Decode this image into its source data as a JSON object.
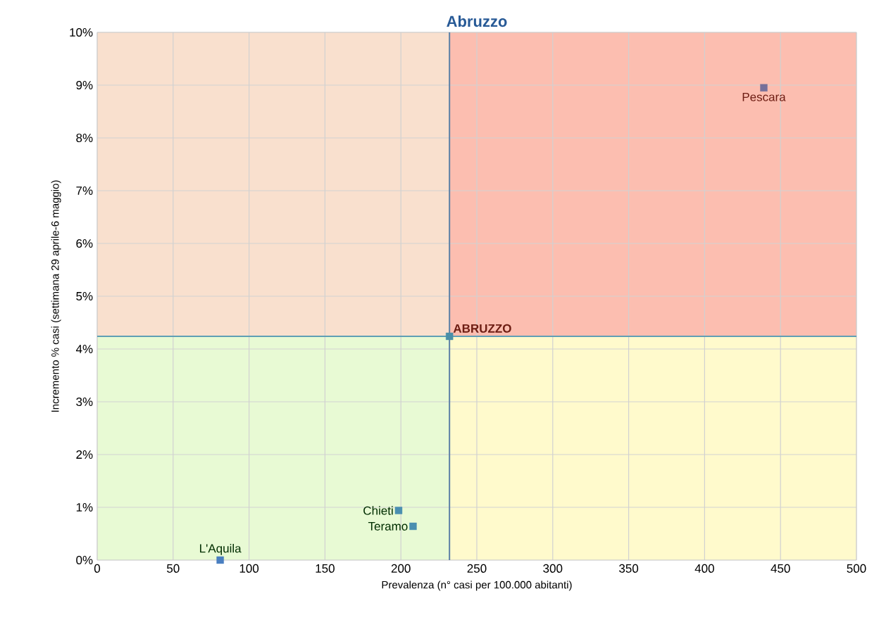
{
  "chart_data": {
    "type": "scatter",
    "title": "Abruzzo",
    "xlabel": "Prevalenza  (n° casi per 100.000 abitanti)",
    "ylabel": "Incremento % casi (settimana 29 aprile-6 maggio)",
    "series": [
      {
        "name": "L'Aquila",
        "color": "#4a7fc1",
        "x": [
          81
        ],
        "values": [
          0
        ]
      },
      {
        "name": "Chieti",
        "color": "#4a8fb0",
        "x": [
          198.5
        ],
        "values": [
          0.94
        ]
      },
      {
        "name": "Teramo",
        "color": "#4a8fb0",
        "x": [
          208
        ],
        "values": [
          0.64
        ]
      },
      {
        "name": "ABRUZZO",
        "color": "#4a8fa8",
        "x": [
          232
        ],
        "values": [
          4.24
        ]
      },
      {
        "name": "Pescara",
        "color": "#76709a",
        "x": [
          439
        ],
        "values": [
          8.95
        ]
      }
    ],
    "ref_lines": [
      {
        "axis": "x",
        "value": 232,
        "color": "#5b7fa6"
      },
      {
        "axis": "y",
        "value": 4.24,
        "color": "#5f9fb5"
      }
    ],
    "bands": [
      {
        "axis": "y",
        "from": 4.24,
        "to": 10,
        "color": "#f9e0ce"
      },
      {
        "axis": "y",
        "from": 4.24,
        "to": 10,
        "color": "#fcbeb0"
      },
      {
        "axis": "y",
        "from": 0,
        "to": 4.24,
        "color": "#e8fad4"
      },
      {
        "axis": "y",
        "from": 0,
        "to": 4.24,
        "color": "#fffacc"
      }
    ],
    "xlim": [
      0,
      500
    ],
    "xticks": [
      0,
      50,
      100,
      150,
      200,
      250,
      300,
      350,
      400,
      450,
      500
    ],
    "ylim": [
      0,
      10
    ],
    "yticks": [
      {
        "value": 0,
        "label": "0%"
      },
      {
        "value": 1,
        "label": "1%"
      },
      {
        "value": 2,
        "label": "2%"
      },
      {
        "value": 3,
        "label": "3%"
      },
      {
        "value": 4,
        "label": "4%"
      },
      {
        "value": 5,
        "label": "5%"
      },
      {
        "value": 6,
        "label": "6%"
      },
      {
        "value": 7,
        "label": "7%"
      },
      {
        "value": 8,
        "label": "8%"
      },
      {
        "value": 9,
        "label": "9%"
      },
      {
        "value": 10,
        "label": "10%"
      }
    ],
    "grid": true,
    "marker": "square",
    "legend": false
  }
}
